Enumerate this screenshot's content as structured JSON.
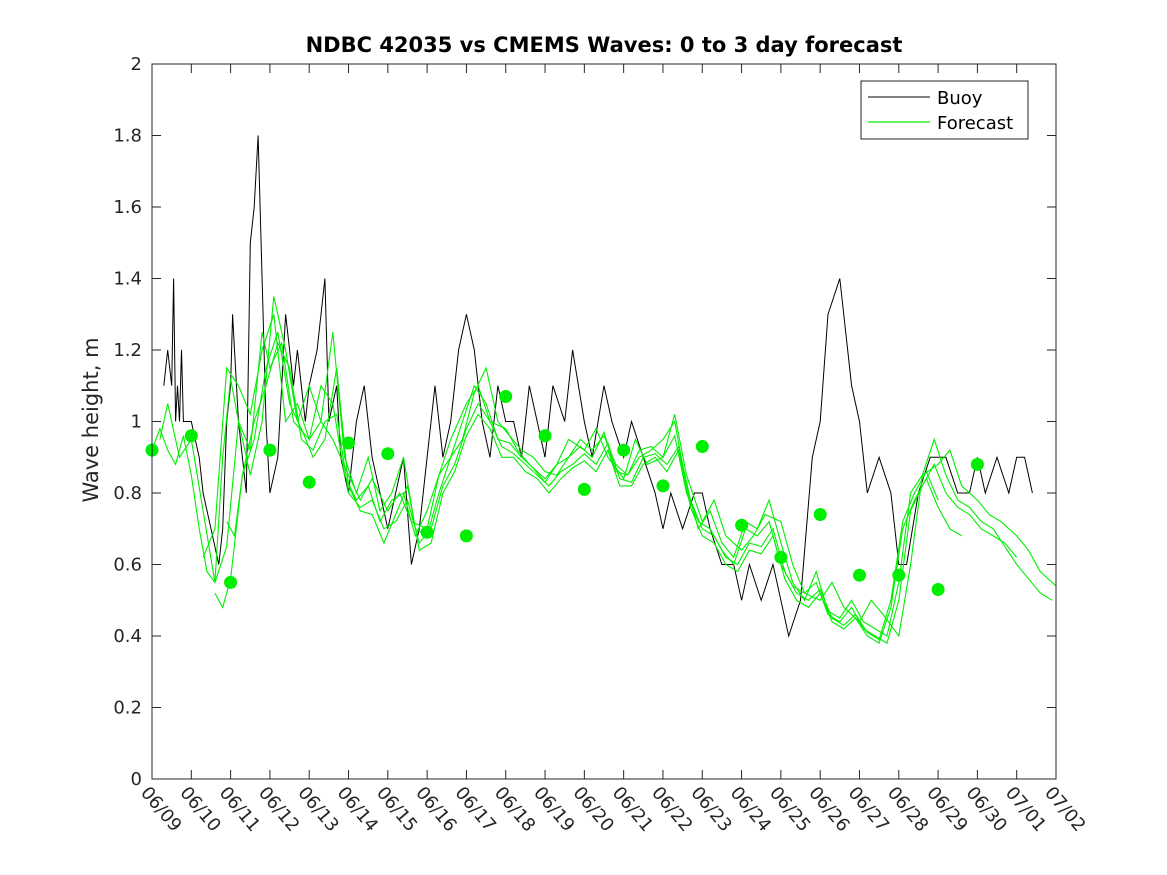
{
  "chart_data": {
    "type": "line",
    "title": "NDBC 42035 vs CMEMS Waves: 0 to 3 day forecast",
    "xlabel": "",
    "ylabel": "Wave height, m",
    "ylim": [
      0,
      2
    ],
    "yticks": [
      "0",
      "0.2",
      "0.4",
      "0.6",
      "0.8",
      "1",
      "1.2",
      "1.4",
      "1.6",
      "1.8",
      "2"
    ],
    "xlim": [
      0,
      23
    ],
    "xticks": [
      "06/09",
      "06/10",
      "06/11",
      "06/12",
      "06/13",
      "06/14",
      "06/15",
      "06/16",
      "06/17",
      "06/18",
      "06/19",
      "06/20",
      "06/21",
      "06/22",
      "06/23",
      "06/24",
      "06/25",
      "06/26",
      "06/27",
      "06/28",
      "06/29",
      "06/30",
      "07/01",
      "07/02"
    ],
    "legend": {
      "position": "top-right",
      "entries": [
        "Buoy",
        "Forecast"
      ]
    },
    "colors": {
      "buoy": "#000000",
      "forecast": "#00ee00"
    },
    "series": [
      {
        "name": "Buoy",
        "x": [
          0.3,
          0.4,
          0.5,
          0.55,
          0.6,
          0.65,
          0.7,
          0.75,
          0.8,
          1.0,
          1.2,
          1.3,
          1.5,
          1.7,
          1.8,
          1.9,
          2.0,
          2.05,
          2.1,
          2.2,
          2.3,
          2.4,
          2.5,
          2.6,
          2.7,
          2.8,
          2.9,
          3.0,
          3.2,
          3.4,
          3.5,
          3.6,
          3.7,
          3.9,
          4.0,
          4.2,
          4.4,
          4.5,
          4.7,
          4.8,
          5.0,
          5.2,
          5.4,
          5.6,
          5.8,
          6.0,
          6.2,
          6.4,
          6.6,
          6.8,
          7.0,
          7.2,
          7.4,
          7.6,
          7.8,
          8.0,
          8.2,
          8.4,
          8.6,
          8.8,
          9.0,
          9.2,
          9.4,
          9.6,
          9.8,
          10.0,
          10.2,
          10.5,
          10.7,
          11.0,
          11.2,
          11.5,
          11.7,
          12.0,
          12.2,
          12.5,
          12.8,
          13.0,
          13.2,
          13.5,
          13.8,
          14.0,
          14.2,
          14.5,
          14.8,
          15.0,
          15.2,
          15.5,
          15.8,
          16.0,
          16.2,
          16.5,
          16.8,
          17.0,
          17.2,
          17.5,
          17.8,
          18.0,
          18.2,
          18.5,
          18.8,
          19.0,
          19.2,
          19.5,
          19.8,
          20.0,
          20.2,
          20.5,
          20.8,
          21.0,
          21.2,
          21.5,
          21.8,
          22.0,
          22.2,
          22.4
        ],
        "values": [
          1.1,
          1.2,
          1.1,
          1.4,
          1.0,
          1.1,
          1.0,
          1.2,
          1.0,
          1.0,
          0.9,
          0.8,
          0.7,
          0.6,
          0.7,
          1.0,
          1.1,
          1.3,
          1.2,
          1.0,
          0.9,
          0.8,
          1.5,
          1.6,
          1.8,
          1.4,
          1.0,
          0.8,
          0.9,
          1.3,
          1.2,
          1.1,
          1.2,
          1.0,
          1.1,
          1.2,
          1.4,
          1.0,
          1.1,
          0.9,
          0.8,
          1.0,
          1.1,
          0.9,
          0.8,
          0.7,
          0.8,
          0.9,
          0.6,
          0.7,
          0.9,
          1.1,
          0.9,
          1.0,
          1.2,
          1.3,
          1.2,
          1.0,
          0.9,
          1.1,
          1.0,
          1.0,
          0.9,
          1.1,
          1.0,
          0.9,
          1.1,
          1.0,
          1.2,
          1.0,
          0.9,
          1.1,
          1.0,
          0.9,
          1.0,
          0.9,
          0.8,
          0.7,
          0.8,
          0.7,
          0.8,
          0.8,
          0.7,
          0.6,
          0.6,
          0.5,
          0.6,
          0.5,
          0.6,
          0.5,
          0.4,
          0.5,
          0.9,
          1.0,
          1.3,
          1.4,
          1.1,
          1.0,
          0.8,
          0.9,
          0.8,
          0.6,
          0.6,
          0.8,
          0.9,
          0.9,
          0.9,
          0.8,
          0.8,
          0.9,
          0.8,
          0.9,
          0.8,
          0.9,
          0.9,
          0.8
        ]
      },
      {
        "name": "Forecast",
        "x": [
          0.0,
          0.2,
          0.4,
          0.6,
          0.8,
          1.0,
          1.2,
          1.4,
          1.6,
          1.8,
          2.0,
          2.2,
          2.5,
          2.8,
          3.0,
          3.3,
          3.6,
          4.0,
          4.3,
          4.6,
          5.0,
          5.3,
          5.6,
          6.0,
          6.3,
          6.6,
          7.0,
          7.3,
          7.6,
          8.0,
          8.3,
          8.6,
          9.0,
          9.3,
          9.6,
          10.0,
          10.3,
          10.6,
          11.0,
          11.3,
          11.6,
          12.0,
          12.3,
          12.6,
          13.0,
          13.3,
          13.6,
          14.0,
          14.3,
          14.6,
          15.0,
          15.3,
          15.6,
          16.0,
          16.3,
          16.6,
          17.0,
          17.3,
          17.6,
          18.0,
          18.3,
          18.6,
          19.0,
          19.3,
          19.6,
          20.0,
          20.3,
          20.6,
          21.0,
          21.3,
          21.6,
          22.0,
          22.3,
          22.6,
          23.0
        ],
        "values": [
          0.92,
          0.98,
          0.92,
          0.88,
          0.96,
          0.85,
          0.7,
          0.58,
          0.55,
          0.9,
          1.12,
          1.0,
          0.92,
          1.25,
          1.15,
          1.22,
          1.0,
          0.95,
          1.0,
          0.95,
          0.85,
          0.78,
          0.84,
          0.75,
          0.8,
          0.72,
          0.7,
          0.85,
          0.95,
          1.05,
          1.1,
          1.0,
          0.98,
          0.92,
          0.88,
          0.84,
          0.88,
          0.95,
          0.92,
          0.98,
          0.9,
          0.84,
          0.95,
          0.88,
          0.9,
          1.02,
          0.85,
          0.72,
          0.78,
          0.68,
          0.64,
          0.68,
          0.74,
          0.72,
          0.6,
          0.52,
          0.5,
          0.55,
          0.48,
          0.44,
          0.5,
          0.46,
          0.4,
          0.6,
          0.85,
          0.88,
          0.92,
          0.82,
          0.78,
          0.74,
          0.72,
          0.68,
          0.64,
          0.58,
          0.54
        ]
      },
      {
        "name": "",
        "x": [
          0.2,
          0.4,
          0.7,
          1.0,
          1.3,
          1.6,
          1.9,
          2.2,
          2.5,
          2.8,
          3.1,
          3.4,
          3.7,
          4.0,
          4.3,
          4.6,
          4.9,
          5.2,
          5.5,
          5.8,
          6.1,
          6.4,
          6.7,
          7.0,
          7.3,
          7.6,
          7.9,
          8.2,
          8.5,
          8.8,
          9.1,
          9.4,
          9.7,
          10.0,
          10.3,
          10.6,
          10.9,
          11.2,
          11.5,
          11.8,
          12.1,
          12.4,
          12.7,
          13.0,
          13.3,
          13.6,
          13.9,
          14.2,
          14.5,
          14.8,
          15.1,
          15.4,
          15.7,
          16.0,
          16.3,
          16.6,
          16.9,
          17.2,
          17.5,
          17.8,
          18.1,
          18.4,
          18.7,
          19.0,
          19.3,
          19.6,
          19.9,
          20.2,
          20.5,
          20.8,
          21.1,
          21.4,
          21.7,
          22.0,
          22.3,
          22.6,
          22.9
        ],
        "values": [
          0.95,
          1.05,
          0.9,
          0.95,
          0.75,
          0.55,
          0.65,
          1.0,
          0.85,
          1.0,
          1.35,
          1.2,
          1.0,
          1.1,
          1.0,
          1.25,
          0.9,
          0.8,
          0.9,
          0.75,
          0.8,
          0.9,
          0.7,
          0.68,
          0.8,
          0.9,
          0.95,
          1.08,
          1.15,
          1.0,
          0.96,
          0.92,
          0.9,
          0.86,
          0.85,
          0.9,
          0.95,
          0.92,
          0.96,
          0.88,
          0.85,
          0.9,
          0.92,
          0.95,
          1.0,
          0.82,
          0.7,
          0.75,
          0.66,
          0.62,
          0.72,
          0.7,
          0.78,
          0.66,
          0.55,
          0.5,
          0.58,
          0.47,
          0.45,
          0.5,
          0.44,
          0.42,
          0.4,
          0.55,
          0.8,
          0.85,
          0.95,
          0.85,
          0.78,
          0.76,
          0.72,
          0.7,
          0.65,
          0.6,
          0.56,
          0.52,
          0.5
        ]
      },
      {
        "name": "",
        "x": [
          1.3,
          1.6,
          1.9,
          2.2,
          2.5,
          2.8,
          3.1,
          3.4,
          3.7,
          4.0,
          4.3,
          4.6,
          4.9,
          5.2,
          5.5,
          5.8,
          6.1,
          6.4,
          6.7,
          7.0,
          7.3,
          7.6,
          7.9,
          8.2,
          8.5,
          8.8,
          9.1,
          9.4,
          9.7,
          10.0,
          10.3,
          10.6,
          10.9,
          11.2,
          11.5,
          11.8,
          12.1,
          12.4,
          12.7,
          13.0,
          13.3,
          13.6,
          13.9,
          14.2,
          14.5,
          14.8,
          15.1,
          15.4,
          15.7,
          16.0,
          16.3,
          16.6,
          16.9,
          17.2,
          17.5,
          17.8,
          18.1,
          18.4,
          18.7,
          19.0,
          19.3,
          19.6,
          19.9,
          20.2,
          20.5,
          20.8,
          21.1,
          21.4,
          21.7,
          22.0
        ],
        "values": [
          0.62,
          0.7,
          1.15,
          1.1,
          1.02,
          1.2,
          1.3,
          1.0,
          1.05,
          0.95,
          1.1,
          1.05,
          0.85,
          0.78,
          0.82,
          0.72,
          0.78,
          0.8,
          0.68,
          0.75,
          0.85,
          0.9,
          1.0,
          1.1,
          1.05,
          0.95,
          0.94,
          0.9,
          0.87,
          0.83,
          0.88,
          0.9,
          0.93,
          0.9,
          0.97,
          0.86,
          0.85,
          0.92,
          0.93,
          0.9,
          0.96,
          0.8,
          0.72,
          0.7,
          0.64,
          0.6,
          0.7,
          0.68,
          0.72,
          0.6,
          0.54,
          0.52,
          0.55,
          0.46,
          0.44,
          0.48,
          0.42,
          0.4,
          0.38,
          0.5,
          0.75,
          0.82,
          0.88,
          0.8,
          0.76,
          0.74,
          0.7,
          0.68,
          0.66,
          0.62
        ]
      },
      {
        "name": "",
        "x": [
          1.9,
          2.1,
          2.3,
          2.6,
          2.9,
          3.2,
          3.5,
          3.8,
          4.1,
          4.4,
          4.7,
          5.0,
          5.3,
          5.6,
          5.9,
          6.2,
          6.5,
          6.8,
          7.1,
          7.4,
          7.7,
          8.0,
          8.3,
          8.6,
          8.9,
          9.2,
          9.5,
          9.8,
          10.1,
          10.4,
          10.7,
          11.0,
          11.3,
          11.6,
          11.9,
          12.2,
          12.5,
          12.8,
          13.1,
          13.4,
          13.7,
          14.0,
          14.3,
          14.6,
          14.9,
          15.2,
          15.5,
          15.8,
          16.1,
          16.4,
          16.7,
          17.0,
          17.3,
          17.6,
          17.9,
          18.2,
          18.5,
          18.8,
          19.1,
          19.4,
          19.7,
          20.0
        ],
        "values": [
          0.72,
          0.68,
          0.85,
          1.0,
          1.1,
          1.22,
          1.15,
          0.95,
          0.92,
          1.0,
          1.02,
          0.8,
          0.76,
          0.78,
          0.7,
          0.72,
          0.78,
          0.66,
          0.7,
          0.82,
          0.88,
          0.98,
          1.05,
          1.0,
          0.93,
          0.91,
          0.88,
          0.85,
          0.82,
          0.86,
          0.88,
          0.91,
          0.88,
          0.94,
          0.84,
          0.83,
          0.9,
          0.91,
          0.88,
          0.93,
          0.78,
          0.7,
          0.68,
          0.62,
          0.6,
          0.66,
          0.65,
          0.7,
          0.58,
          0.52,
          0.5,
          0.53,
          0.45,
          0.43,
          0.46,
          0.41,
          0.39,
          0.5,
          0.72,
          0.8,
          0.86,
          0.78
        ]
      },
      {
        "name": "",
        "x": [
          1.6,
          1.8,
          2.0,
          2.3,
          2.6,
          2.9,
          3.2,
          3.5,
          3.8,
          4.1,
          4.4,
          4.7,
          5.0,
          5.3,
          5.6,
          5.9,
          6.2,
          6.5,
          6.8,
          7.1,
          7.4,
          7.7,
          8.0,
          8.3,
          8.6,
          8.9,
          9.2,
          9.5,
          9.8,
          10.1,
          10.4,
          10.7,
          11.0,
          11.3,
          11.6,
          11.9,
          12.2,
          12.5,
          12.8,
          13.1,
          13.4,
          13.7,
          14.0,
          14.3,
          14.6,
          14.9,
          15.2,
          15.5,
          15.8,
          16.1,
          16.4,
          16.7,
          17.0,
          17.3,
          17.6,
          17.9,
          18.2,
          18.5,
          18.8,
          19.1,
          19.4,
          19.7,
          20.0,
          20.3,
          20.6
        ],
        "values": [
          0.52,
          0.48,
          0.56,
          0.85,
          0.95,
          1.15,
          1.25,
          1.05,
          0.98,
          0.9,
          0.95,
          1.15,
          0.82,
          0.75,
          0.74,
          0.66,
          0.74,
          0.82,
          0.64,
          0.66,
          0.8,
          0.86,
          0.96,
          1.02,
          0.98,
          0.9,
          0.9,
          0.86,
          0.84,
          0.8,
          0.84,
          0.87,
          0.89,
          0.86,
          0.92,
          0.82,
          0.82,
          0.88,
          0.9,
          0.86,
          0.92,
          0.76,
          0.68,
          0.66,
          0.6,
          0.58,
          0.64,
          0.63,
          0.68,
          0.56,
          0.5,
          0.48,
          0.52,
          0.44,
          0.42,
          0.45,
          0.4,
          0.38,
          0.48,
          0.7,
          0.78,
          0.84,
          0.76,
          0.7,
          0.68
        ]
      }
    ],
    "markers": {
      "name": "",
      "x": [
        0,
        1,
        2,
        3,
        4,
        5,
        6,
        7,
        8,
        9,
        10,
        11,
        12,
        13,
        14,
        15,
        16,
        17,
        18,
        19,
        20,
        21
      ],
      "values": [
        0.92,
        0.96,
        0.55,
        0.92,
        0.83,
        0.94,
        0.91,
        0.69,
        0.68,
        1.07,
        0.96,
        0.81,
        0.92,
        0.82,
        0.93,
        0.71,
        0.62,
        0.74,
        0.57,
        0.57,
        0.53,
        0.88
      ]
    }
  }
}
